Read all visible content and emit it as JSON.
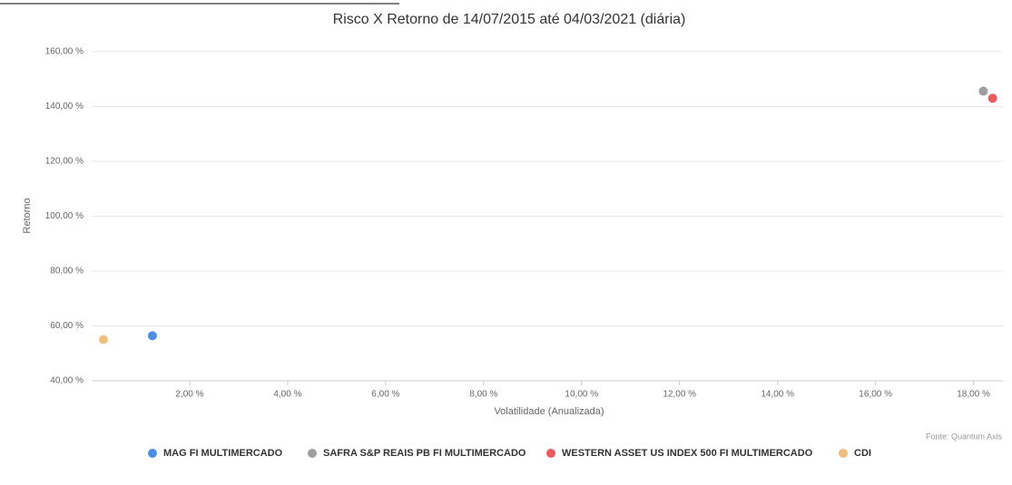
{
  "chart_data": {
    "type": "scatter",
    "title": "Risco X Retorno de 14/07/2015 até 04/03/2021 (diária)",
    "x_label": "Volatilidade (Anualizada)",
    "y_label": "Retorno",
    "source": "Fonte: Quantum Axis",
    "xlim": [
      0,
      18.6
    ],
    "ylim": [
      40,
      160
    ],
    "xticks": [
      {
        "value": 2,
        "label": "2,00 %"
      },
      {
        "value": 4,
        "label": "4,00 %"
      },
      {
        "value": 6,
        "label": "6,00 %"
      },
      {
        "value": 8,
        "label": "8,00 %"
      },
      {
        "value": 10,
        "label": "10,00 %"
      },
      {
        "value": 12,
        "label": "12,00 %"
      },
      {
        "value": 14,
        "label": "14,00 %"
      },
      {
        "value": 16,
        "label": "16,00 %"
      },
      {
        "value": 18,
        "label": "18,00 %"
      }
    ],
    "yticks": [
      {
        "value": 40,
        "label": "40,00 %"
      },
      {
        "value": 60,
        "label": "60,00 %"
      },
      {
        "value": 80,
        "label": "80,00 %"
      },
      {
        "value": 100,
        "label": "100,00 %"
      },
      {
        "value": 120,
        "label": "120,00 %"
      },
      {
        "value": 140,
        "label": "140,00 %"
      },
      {
        "value": 160,
        "label": "160,00 %"
      }
    ],
    "grid": true,
    "series": [
      {
        "name": "MAG FI MULTIMERCADO",
        "color": "#4a8fe7",
        "x": [
          1.24
        ],
        "values": [
          56.4
        ]
      },
      {
        "name": "SAFRA S&P REAIS PB FI MULTIMERCADO",
        "color": "#9e9e9e",
        "x": [
          18.2
        ],
        "values": [
          145.6
        ]
      },
      {
        "name": "WESTERN ASSET US INDEX 500 FI MULTIMERCADO",
        "color": "#f05a5e",
        "x": [
          18.39
        ],
        "values": [
          143.0
        ]
      },
      {
        "name": "CDI",
        "color": "#f0bd7a",
        "x": [
          0.24
        ],
        "values": [
          55.0
        ]
      }
    ]
  }
}
